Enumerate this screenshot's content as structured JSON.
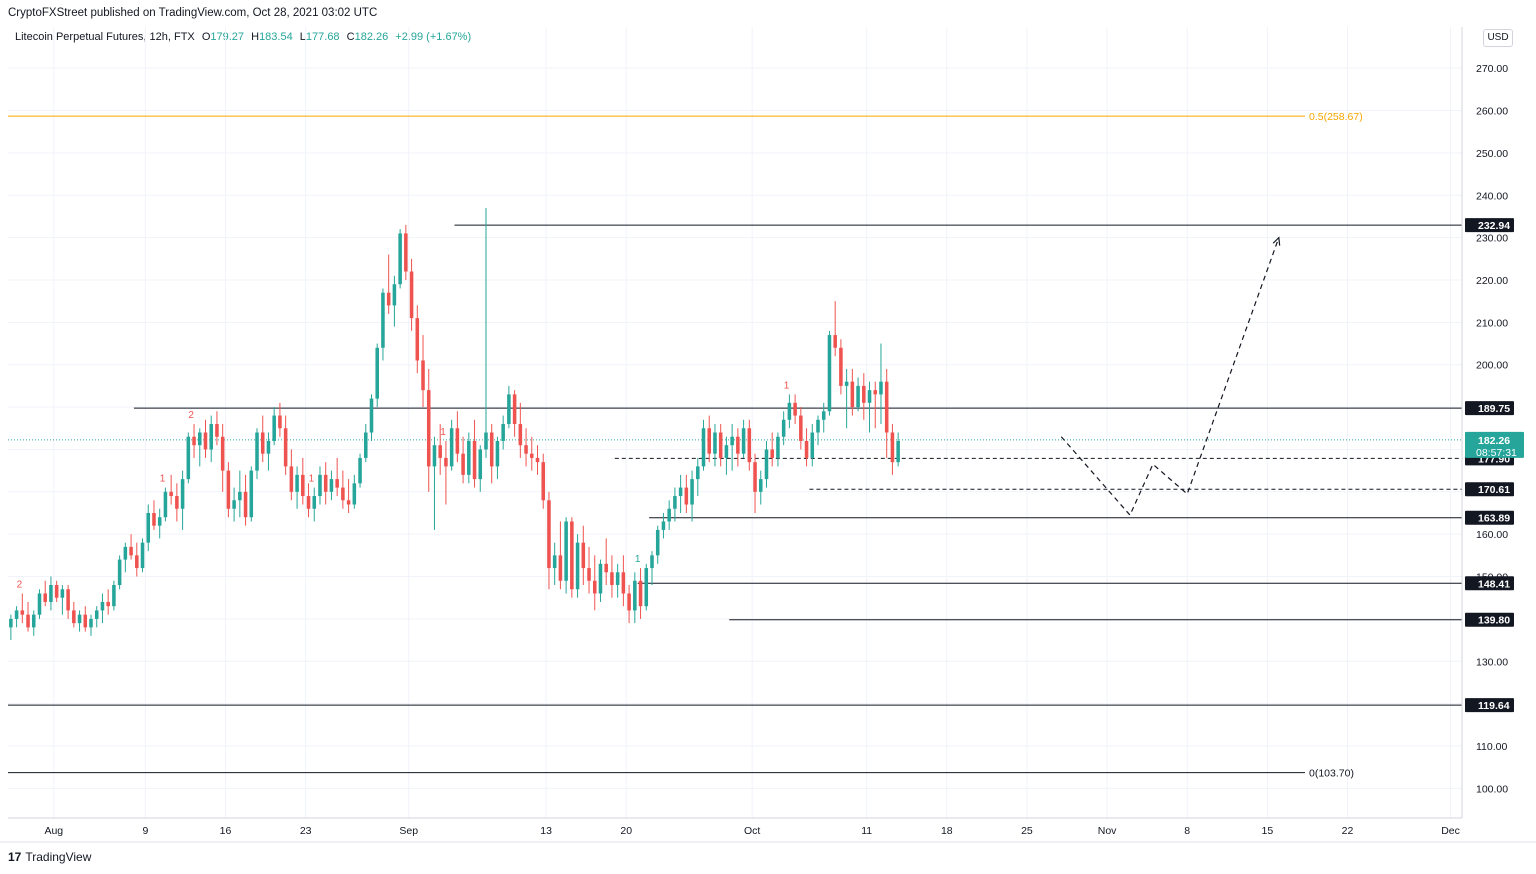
{
  "header": {
    "publisher_line": "CryptoFXStreet published on TradingView.com, Oct 28, 2021 03:02 UTC"
  },
  "legend": {
    "symbol": "Litecoin Perpetual Futures, 12h, FTX",
    "open_label": "O",
    "open": "179.27",
    "high_label": "H",
    "high": "183.54",
    "low_label": "L",
    "low": "177.68",
    "close_label": "C",
    "close": "182.26",
    "change": "+2.99 (+1.67%)"
  },
  "currency_button": "USD",
  "footer": {
    "logo": "17",
    "brand": "TradingView"
  },
  "colors": {
    "up": "#26a69a",
    "down": "#ef5350",
    "fib": "#f7a600",
    "level": "#131722",
    "last_price": "#26a69a",
    "grid": "#f0f3fa"
  },
  "chart_data": {
    "type": "candlestick",
    "title": "",
    "ylim": [
      93,
      275
    ],
    "y_ticks": [
      100,
      110,
      120,
      130,
      140,
      150,
      160,
      170,
      180,
      190,
      200,
      210,
      220,
      230,
      240,
      250,
      260,
      270
    ],
    "y_tick_labels": [
      "100.00",
      "110.00",
      "120.00",
      "130.00",
      "140.00",
      "150.00",
      "160.00",
      "170.00",
      "180.00",
      "190.00",
      "200.00",
      "210.00",
      "220.00",
      "230.00",
      "240.00",
      "250.00",
      "260.00",
      "270.00"
    ],
    "x_axis": {
      "start_date": "2021-07-28",
      "end_date": "2021-12-02",
      "ticks": [
        {
          "label": "Aug",
          "date": "2021-08-01"
        },
        {
          "label": "9",
          "date": "2021-08-09"
        },
        {
          "label": "16",
          "date": "2021-08-16"
        },
        {
          "label": "23",
          "date": "2021-08-23"
        },
        {
          "label": "Sep",
          "date": "2021-09-01"
        },
        {
          "label": "13",
          "date": "2021-09-13"
        },
        {
          "label": "20",
          "date": "2021-09-20"
        },
        {
          "label": "Oct",
          "date": "2021-10-01"
        },
        {
          "label": "11",
          "date": "2021-10-11"
        },
        {
          "label": "18",
          "date": "2021-10-18"
        },
        {
          "label": "25",
          "date": "2021-10-25"
        },
        {
          "label": "Nov",
          "date": "2021-11-01"
        },
        {
          "label": "8",
          "date": "2021-11-08"
        },
        {
          "label": "15",
          "date": "2021-11-15"
        },
        {
          "label": "22",
          "date": "2021-11-22"
        },
        {
          "label": "Dec",
          "date": "2021-12-01"
        }
      ]
    },
    "candle_interval": "12h",
    "first_candle": "2021-07-28",
    "candles": [
      [
        138,
        141,
        135,
        140
      ],
      [
        140,
        143,
        138,
        142
      ],
      [
        142,
        146,
        139,
        141
      ],
      [
        141,
        144,
        137,
        138
      ],
      [
        138,
        142,
        136,
        141
      ],
      [
        141,
        147,
        140,
        146
      ],
      [
        146,
        149,
        143,
        144
      ],
      [
        144,
        150,
        142,
        148
      ],
      [
        148,
        149,
        144,
        145
      ],
      [
        145,
        148,
        141,
        147
      ],
      [
        147,
        148,
        140,
        142
      ],
      [
        142,
        144,
        138,
        139
      ],
      [
        139,
        142,
        137,
        141
      ],
      [
        141,
        143,
        137,
        138
      ],
      [
        138,
        141,
        136,
        140
      ],
      [
        140,
        143,
        138,
        142
      ],
      [
        142,
        146,
        139,
        144
      ],
      [
        144,
        147,
        141,
        143
      ],
      [
        143,
        149,
        142,
        148
      ],
      [
        148,
        155,
        147,
        154
      ],
      [
        154,
        158,
        151,
        157
      ],
      [
        157,
        160,
        154,
        155
      ],
      [
        155,
        158,
        150,
        152
      ],
      [
        152,
        159,
        151,
        158
      ],
      [
        158,
        167,
        156,
        165
      ],
      [
        165,
        168,
        161,
        162
      ],
      [
        162,
        166,
        159,
        164
      ],
      [
        164,
        171,
        163,
        170
      ],
      [
        170,
        174,
        167,
        169
      ],
      [
        169,
        172,
        163,
        166
      ],
      [
        166,
        175,
        161,
        173
      ],
      [
        173,
        184,
        172,
        183
      ],
      [
        183,
        186,
        178,
        181
      ],
      [
        181,
        185,
        176,
        184
      ],
      [
        184,
        187,
        178,
        180
      ],
      [
        180,
        188,
        177,
        186
      ],
      [
        186,
        189,
        181,
        183
      ],
      [
        183,
        186,
        170,
        175
      ],
      [
        175,
        177,
        164,
        166
      ],
      [
        166,
        171,
        163,
        168
      ],
      [
        168,
        175,
        164,
        170
      ],
      [
        170,
        174,
        162,
        164
      ],
      [
        164,
        176,
        163,
        175
      ],
      [
        175,
        185,
        173,
        184
      ],
      [
        184,
        188,
        177,
        179
      ],
      [
        179,
        184,
        175,
        182
      ],
      [
        182,
        190,
        181,
        188
      ],
      [
        188,
        191,
        183,
        185
      ],
      [
        185,
        188,
        174,
        176
      ],
      [
        176,
        180,
        168,
        170
      ],
      [
        170,
        176,
        166,
        174
      ],
      [
        174,
        178,
        167,
        169
      ],
      [
        169,
        172,
        164,
        166
      ],
      [
        166,
        171,
        163,
        169
      ],
      [
        169,
        176,
        167,
        174
      ],
      [
        174,
        177,
        167,
        170
      ],
      [
        170,
        175,
        168,
        173
      ],
      [
        173,
        178,
        169,
        171
      ],
      [
        171,
        175,
        166,
        168
      ],
      [
        168,
        173,
        165,
        167
      ],
      [
        167,
        174,
        166,
        172
      ],
      [
        172,
        179,
        171,
        178
      ],
      [
        178,
        186,
        177,
        184
      ],
      [
        184,
        193,
        182,
        192
      ],
      [
        192,
        205,
        190,
        204
      ],
      [
        204,
        218,
        201,
        217
      ],
      [
        217,
        226,
        212,
        214
      ],
      [
        214,
        221,
        209,
        219
      ],
      [
        219,
        232,
        218,
        231
      ],
      [
        231,
        233,
        220,
        222
      ],
      [
        222,
        225,
        208,
        211
      ],
      [
        211,
        214,
        198,
        201
      ],
      [
        201,
        207,
        190,
        194
      ],
      [
        194,
        199,
        170,
        176
      ],
      [
        176,
        183,
        161,
        181
      ],
      [
        181,
        186,
        174,
        178
      ],
      [
        178,
        182,
        167,
        176
      ],
      [
        176,
        187,
        175,
        185
      ],
      [
        185,
        189,
        177,
        179
      ],
      [
        179,
        183,
        172,
        174
      ],
      [
        174,
        184,
        172,
        182
      ],
      [
        182,
        187,
        171,
        173
      ],
      [
        173,
        181,
        170,
        180
      ],
      [
        180,
        237,
        178,
        184
      ],
      [
        184,
        186,
        172,
        176
      ],
      [
        176,
        183,
        173,
        182
      ],
      [
        182,
        188,
        180,
        186
      ],
      [
        186,
        195,
        185,
        193
      ],
      [
        193,
        194,
        183,
        186
      ],
      [
        186,
        191,
        178,
        181
      ],
      [
        181,
        185,
        176,
        179
      ],
      [
        179,
        183,
        175,
        178
      ],
      [
        178,
        181,
        174,
        177
      ],
      [
        177,
        179,
        166,
        168
      ],
      [
        168,
        170,
        147,
        152
      ],
      [
        152,
        158,
        148,
        155
      ],
      [
        155,
        163,
        147,
        149
      ],
      [
        149,
        164,
        146,
        163
      ],
      [
        163,
        164,
        145,
        147
      ],
      [
        147,
        160,
        145,
        158
      ],
      [
        158,
        162,
        148,
        152
      ],
      [
        152,
        157,
        146,
        149
      ],
      [
        149,
        155,
        142,
        146
      ],
      [
        146,
        154,
        144,
        153
      ],
      [
        153,
        159,
        148,
        151
      ],
      [
        151,
        155,
        145,
        148
      ],
      [
        148,
        153,
        145,
        151
      ],
      [
        151,
        155,
        143,
        146
      ],
      [
        146,
        148,
        139,
        142
      ],
      [
        142,
        151,
        139,
        149
      ],
      [
        149,
        152,
        140,
        143
      ],
      [
        143,
        153,
        142,
        152
      ],
      [
        152,
        156,
        148,
        155
      ],
      [
        155,
        162,
        153,
        161
      ],
      [
        161,
        165,
        159,
        163
      ],
      [
        163,
        168,
        161,
        166
      ],
      [
        166,
        171,
        163,
        169
      ],
      [
        169,
        174,
        165,
        171
      ],
      [
        171,
        174,
        165,
        167
      ],
      [
        167,
        175,
        163,
        173
      ],
      [
        173,
        178,
        169,
        176
      ],
      [
        176,
        187,
        175,
        185
      ],
      [
        185,
        188,
        177,
        179
      ],
      [
        179,
        186,
        176,
        184
      ],
      [
        184,
        186,
        176,
        178
      ],
      [
        178,
        183,
        174,
        181
      ],
      [
        181,
        186,
        175,
        183
      ],
      [
        183,
        185,
        176,
        179
      ],
      [
        179,
        187,
        178,
        185
      ],
      [
        185,
        187,
        175,
        177
      ],
      [
        177,
        179,
        165,
        170
      ],
      [
        170,
        175,
        167,
        173
      ],
      [
        173,
        182,
        171,
        180
      ],
      [
        180,
        184,
        176,
        178
      ],
      [
        178,
        184,
        176,
        183
      ],
      [
        183,
        189,
        181,
        187
      ],
      [
        187,
        193,
        185,
        191
      ],
      [
        191,
        193,
        186,
        188
      ],
      [
        188,
        190,
        180,
        182
      ],
      [
        182,
        185,
        176,
        178
      ],
      [
        178,
        186,
        176,
        184
      ],
      [
        184,
        188,
        181,
        187
      ],
      [
        187,
        191,
        184,
        189
      ],
      [
        189,
        208,
        188,
        207
      ],
      [
        207,
        215,
        202,
        204
      ],
      [
        204,
        206,
        193,
        195
      ],
      [
        195,
        199,
        185,
        196
      ],
      [
        196,
        199,
        188,
        190
      ],
      [
        190,
        197,
        189,
        195
      ],
      [
        195,
        198,
        187,
        191
      ],
      [
        191,
        196,
        184,
        194
      ],
      [
        194,
        196,
        185,
        193
      ],
      [
        193,
        205,
        186,
        196
      ],
      [
        196,
        199,
        178,
        184
      ],
      [
        184,
        186,
        174,
        177
      ],
      [
        177,
        184,
        176,
        182
      ]
    ],
    "levels": [
      {
        "value": 232.94,
        "label": "232.94",
        "start_date": "2021-09-05"
      },
      {
        "value": 189.75,
        "label": "189.75",
        "start_date": "2021-08-08"
      },
      {
        "value": 177.9,
        "label": "177.90",
        "start_date": "2021-09-19",
        "dashed": true
      },
      {
        "value": 170.61,
        "label": "170.61",
        "start_date": "2021-10-06",
        "dashed": true
      },
      {
        "value": 163.89,
        "label": "163.89",
        "start_date": "2021-09-22"
      },
      {
        "value": 148.41,
        "label": "148.41",
        "start_date": "2021-09-21"
      },
      {
        "value": 139.8,
        "label": "139.80",
        "start_date": "2021-09-29"
      },
      {
        "value": 119.64,
        "label": "119.64",
        "start_date": "2021-07-28"
      }
    ],
    "fib_levels": [
      {
        "value": 258.67,
        "label": "0.5(258.67)",
        "color": "#f7a600"
      },
      {
        "value": 103.7,
        "label": "0(103.70)",
        "color": "#131722"
      }
    ],
    "last_price": {
      "value": "182.26",
      "countdown": "08:57:31"
    },
    "projection_path": [
      {
        "date": "2021-10-28",
        "value": 183
      },
      {
        "date": "2021-11-03",
        "value": 164.5
      },
      {
        "date": "2021-11-05",
        "value": 176.5
      },
      {
        "date": "2021-11-08",
        "value": 169.5
      },
      {
        "date": "2021-11-16",
        "value": 230
      }
    ],
    "td_markers": [
      {
        "date": "2021-07-29",
        "label": "2",
        "color": "#ef5350"
      },
      {
        "date": "2021-08-10.5",
        "label": "1",
        "color": "#ef5350"
      },
      {
        "date": "2021-08-13",
        "label": "2",
        "color": "#ef5350"
      },
      {
        "date": "2021-08-23.5",
        "label": "1",
        "color": "#ef5350"
      },
      {
        "date": "2021-09-04",
        "label": "1",
        "color": "#ef5350"
      },
      {
        "date": "2021-09-21",
        "label": "1",
        "color": "#26a69a"
      },
      {
        "date": "2021-10-04",
        "label": "1",
        "color": "#ef5350"
      }
    ]
  }
}
